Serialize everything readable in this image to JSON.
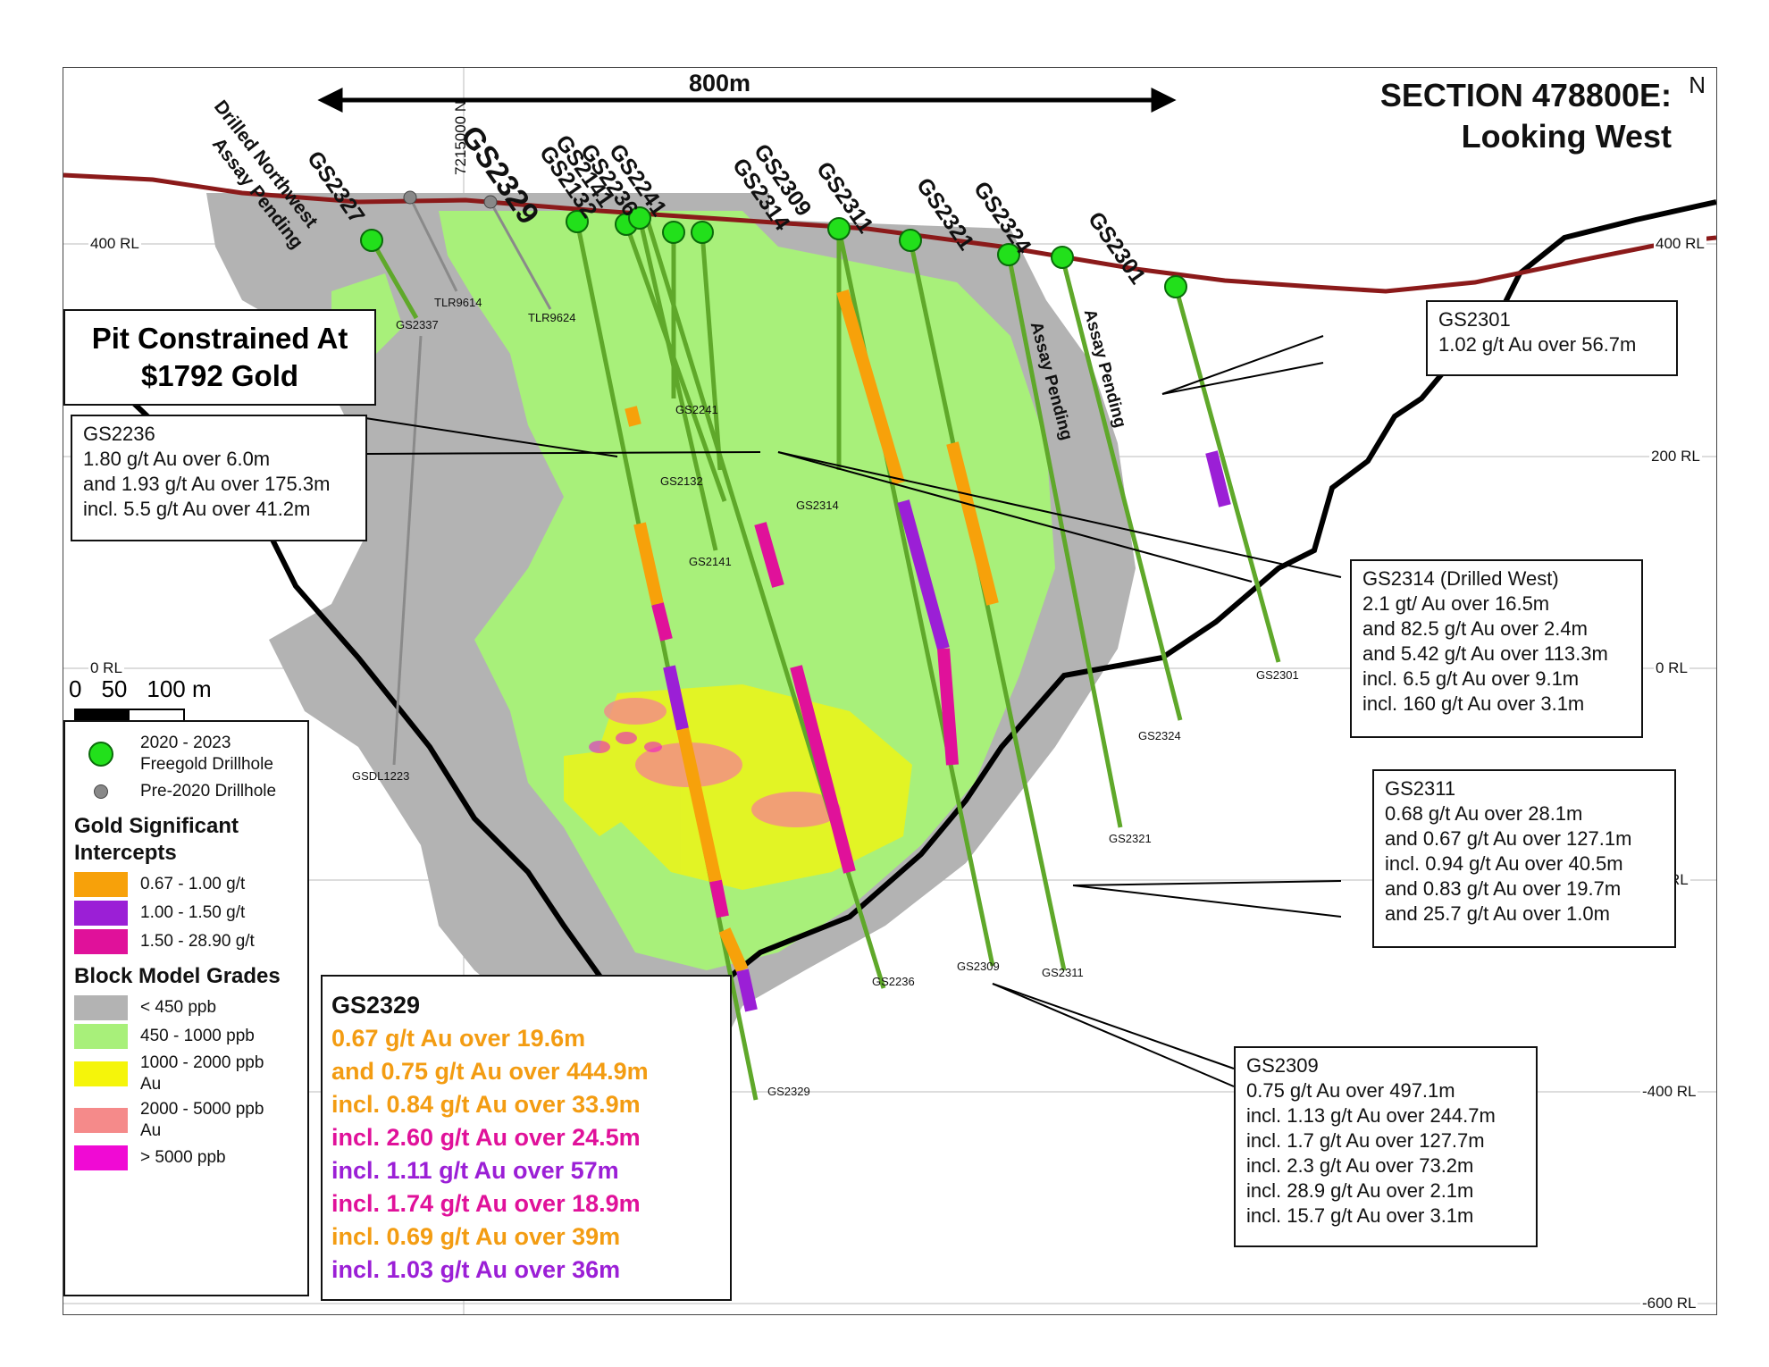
{
  "title": {
    "line1": "SECTION 478800E:",
    "line2": "Looking West"
  },
  "north": "N",
  "scale_top": "800m",
  "northing": "7215000 N",
  "rl_labels": {
    "left": [
      "400 RL",
      "0 RL"
    ],
    "right": [
      "400 RL",
      "200 RL",
      "0 RL",
      "RL",
      "-400 RL",
      "-600 RL"
    ]
  },
  "scale_bar": {
    "labels": [
      "0",
      "50",
      "100 m"
    ]
  },
  "annotation_drilled": {
    "line1": "Drilled Northwest",
    "line2": "Assay Pending"
  },
  "assay_pending": [
    "Assay Pending",
    "Assay Pending"
  ],
  "hole_labels": [
    "GS2327",
    "GS2329",
    "GS2141",
    "GS2132",
    "GS2236",
    "GS2241",
    "GS2309",
    "GS2314",
    "GS2311",
    "GS2321",
    "GS2324",
    "GS2301"
  ],
  "end_labels": [
    "GS2337",
    "TLR9614",
    "TLR9624",
    "GS2241",
    "GS2132",
    "GS2314",
    "GS2141",
    "GSDL1223",
    "GS2301",
    "GS2324",
    "GS2321",
    "GS2236",
    "GS2309",
    "GS2311",
    "GS2329"
  ],
  "pit_box": {
    "line1": "Pit Constrained At",
    "line2": "$1792 Gold"
  },
  "callouts": {
    "gs2236": {
      "title": "GS2236",
      "lines": [
        "1.80 g/t Au over 6.0m",
        "and 1.93 g/t Au over 175.3m",
        "incl. 5.5 g/t Au over 41.2m"
      ]
    },
    "gs2301": {
      "title": "GS2301",
      "lines": [
        "1.02 g/t Au over 56.7m"
      ]
    },
    "gs2314": {
      "title": "GS2314 (Drilled West)",
      "lines": [
        "2.1 gt/ Au over 16.5m",
        "and 82.5 g/t Au over 2.4m",
        "and 5.42 g/t Au over 113.3m",
        "incl. 6.5 g/t Au over 9.1m",
        "incl. 160 g/t Au over 3.1m"
      ]
    },
    "gs2311": {
      "title": "GS2311",
      "lines": [
        "0.68 g/t Au over 28.1m",
        "and 0.67 g/t Au over 127.1m",
        "incl. 0.94 g/t Au over 40.5m",
        "and 0.83 g/t Au over 19.7m",
        "and 25.7 g/t Au over 1.0m"
      ]
    },
    "gs2309": {
      "title": "GS2309",
      "lines": [
        "0.75 g/t Au over 497.1m",
        "incl. 1.13 g/t Au over 244.7m",
        "incl. 1.7 g/t Au over 127.7m",
        "incl. 2.3 g/t Au over 73.2m",
        "incl. 28.9 g/t Au over 2.1m",
        "incl. 15.7 g/t Au over 3.1m"
      ]
    }
  },
  "gs2329_box": {
    "title": "GS2329",
    "lines": [
      {
        "text": "0.67 g/t Au over 19.6m",
        "color": "#f39c12"
      },
      {
        "text": "and 0.75 g/t Au over 444.9m",
        "color": "#f39c12"
      },
      {
        "text": "incl. 0.84 g/t Au over 33.9m",
        "color": "#f39c12"
      },
      {
        "text": "incl. 2.60 g/t Au over 24.5m",
        "color": "#e0119a"
      },
      {
        "text": "incl. 1.11 g/t Au over 57m",
        "color": "#9b1fd6"
      },
      {
        "text": "incl. 1.74 g/t Au over 18.9m",
        "color": "#e0119a"
      },
      {
        "text": "incl. 0.69 g/t Au over 39m",
        "color": "#f39c12"
      },
      {
        "text": "incl. 1.03 g/t Au over 36m",
        "color": "#9b1fd6"
      }
    ]
  },
  "legend": {
    "drillholes": [
      {
        "label": "2020 - 2023 Freegold Drillhole",
        "color": "#22e01b"
      },
      {
        "label": "Pre-2020 Drillhole",
        "color": "#888888"
      }
    ],
    "intercepts_title": "Gold Significant Intercepts",
    "intercepts": [
      {
        "label": "0.67 - 1.00 g/t",
        "color": "#f7a10a"
      },
      {
        "label": "1.00 - 1.50 g/t",
        "color": "#9b1fd6"
      },
      {
        "label": "1.50 - 28.90 g/t",
        "color": "#e0119a"
      }
    ],
    "grades_title": "Block Model Grades",
    "grades": [
      {
        "label": "< 450 ppb",
        "color": "#b3b3b3"
      },
      {
        "label": "450 - 1000 ppb",
        "color": "#a8f07a"
      },
      {
        "label": "1000 - 2000 ppb Au",
        "color": "#f5f50a"
      },
      {
        "label": "2000 - 5000 ppb Au",
        "color": "#f58a8a"
      },
      {
        "label": "> 5000 ppb",
        "color": "#f00ad4"
      }
    ]
  }
}
